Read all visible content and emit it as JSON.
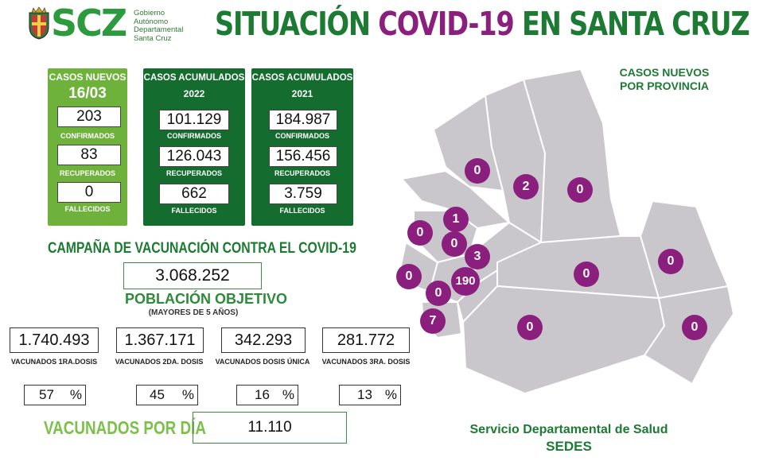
{
  "header": {
    "logo_text": "SCZ",
    "logo_subtitle": [
      "Gobierno",
      "Autónomo",
      "Departamental",
      "Santa Cruz"
    ],
    "title_part1": "SITUACIÓN ",
    "title_highlight": "COVID-19",
    "title_part2": " EN SANTA CRUZ"
  },
  "panels": {
    "daily": {
      "title": "CASOS NUEVOS",
      "date": "16/03",
      "confirmed": "203",
      "confirmed_label": "CONFIRMADOS",
      "recovered": "83",
      "recovered_label": "RECUPERADOS",
      "deaths": "0",
      "deaths_label": "FALLECIDOS"
    },
    "cum2022": {
      "title": "CASOS ACUMULADOS",
      "year": "2022",
      "confirmed": "101.129",
      "confirmed_label": "CONFIRMADOS",
      "recovered": "126.043",
      "recovered_label": "RECUPERADOS",
      "deaths": "662",
      "deaths_label": "FALLECIDOS"
    },
    "cum2021": {
      "title": "CASOS ACUMULADOS",
      "year": "2021",
      "confirmed": "184.987",
      "confirmed_label": "CONFIRMADOS",
      "recovered": "156.456",
      "recovered_label": "RECUPERADOS",
      "deaths": "3.759",
      "deaths_label": "FALLECIDOS"
    }
  },
  "vaccination": {
    "title": "CAMPAÑA DE VACUNACIÓN CONTRA EL COVID-19",
    "target_population": "3.068.252",
    "target_label": "POBLACIÓN OBJETIVO",
    "target_sublabel": "(MAYORES DE 5 AÑOS)",
    "doses": [
      {
        "value": "1.740.493",
        "label": "VACUNADOS 1RA.DOSIS",
        "percent": "57",
        "percent_sign": "%"
      },
      {
        "value": "1.367.171",
        "label": "VACUNADOS 2DA. DOSIS",
        "percent": "45",
        "percent_sign": "%"
      },
      {
        "value": "342.293",
        "label": "VACUNADOS DOSIS ÚNICA",
        "percent": "16",
        "percent_sign": "%"
      },
      {
        "value": "281.772",
        "label": "VACUNADOS 3RA.  DOSIS",
        "percent": "13",
        "percent_sign": "%"
      }
    ],
    "per_day_label": "VACUNADOS POR DÍA",
    "per_day_value": "11.110"
  },
  "map": {
    "title_line1": "CASOS NUEVOS",
    "title_line2": "POR PROVINCIA",
    "region_fill": "#c9c7cc",
    "marker_color": "#8b1f7d",
    "markers": [
      "0",
      "2",
      "0",
      "1",
      "0",
      "0",
      "3",
      "0",
      "190",
      "0",
      "0",
      "0",
      "7",
      "0",
      "0"
    ]
  },
  "footer": {
    "line1": "Servicio Departamental de Salud",
    "line2": "SEDES"
  }
}
